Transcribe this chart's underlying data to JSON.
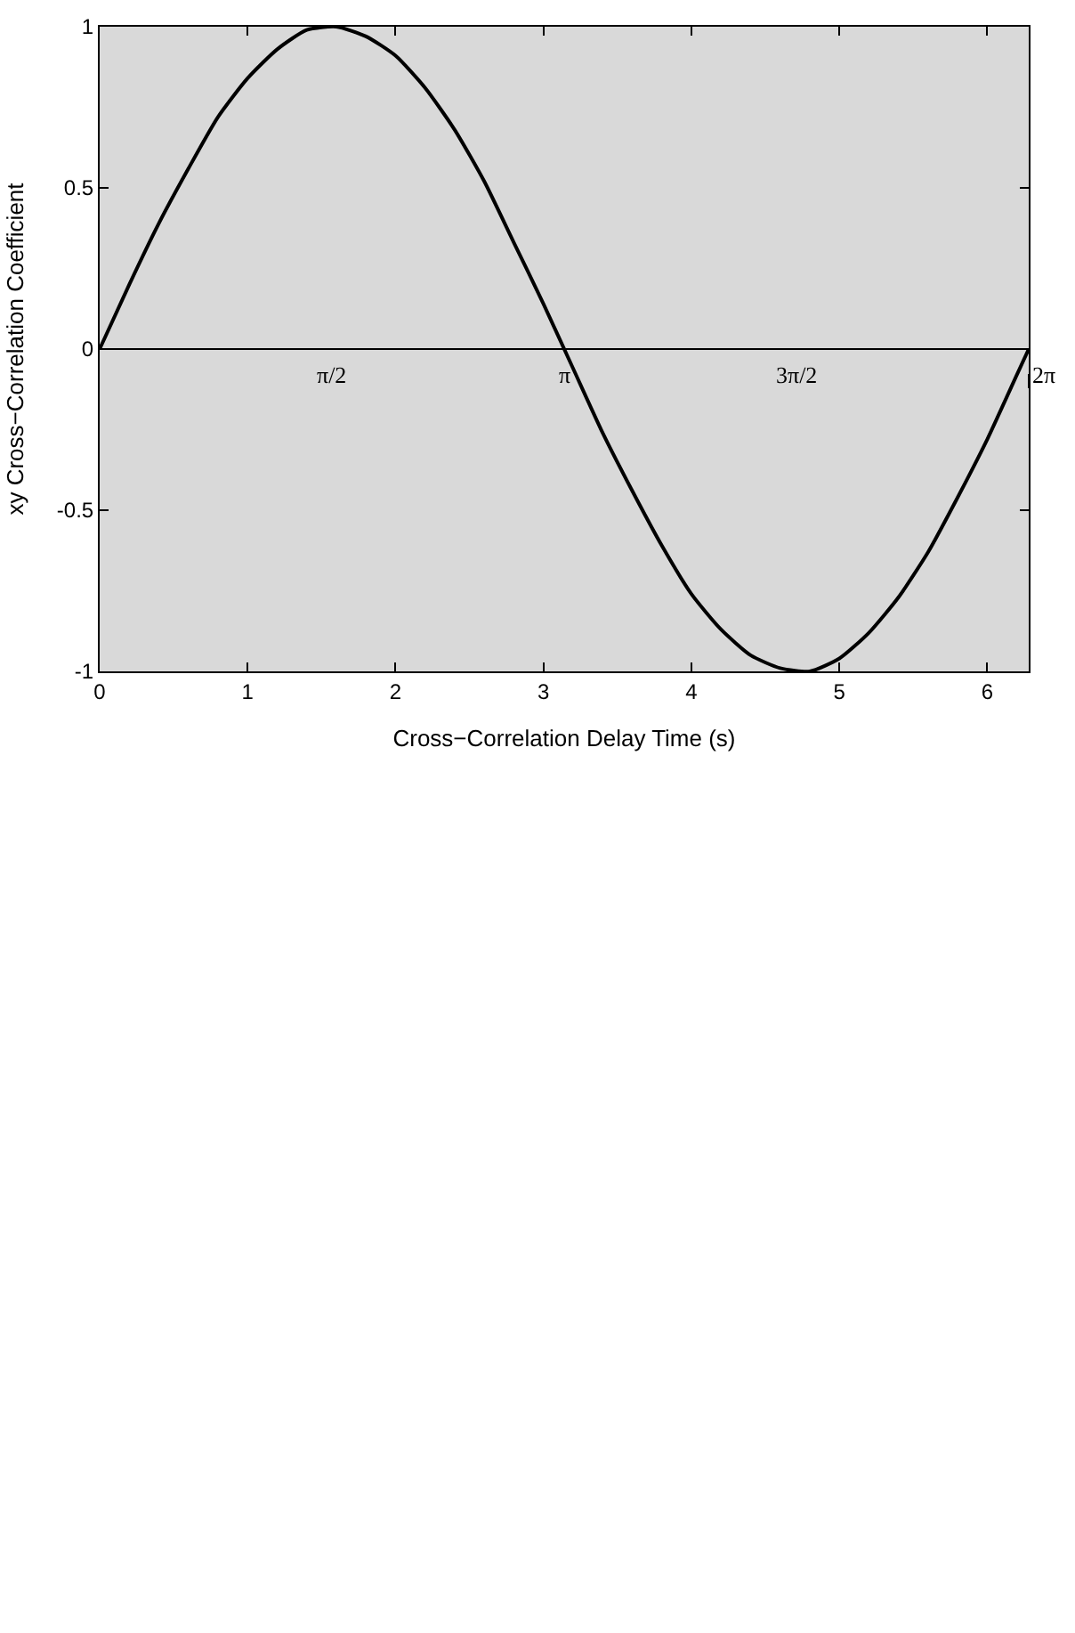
{
  "chart_data": {
    "type": "line",
    "xlabel": "Cross−Correlation Delay Time (s)",
    "ylabel": "xy Cross−Correlation Coefficient",
    "x": [
      0,
      0.2,
      0.4,
      0.6,
      0.8,
      1.0,
      1.2,
      1.4,
      1.6,
      1.8,
      2.0,
      2.2,
      2.4,
      2.6,
      2.8,
      3.0,
      3.2,
      3.4,
      3.6,
      3.8,
      4.0,
      4.2,
      4.4,
      4.6,
      4.8,
      5.0,
      5.2,
      5.4,
      5.6,
      5.8,
      6.0,
      6.2,
      6.28
    ],
    "series": [
      {
        "color": "#000000",
        "values": [
          0,
          0.2,
          0.39,
          0.56,
          0.72,
          0.84,
          0.93,
          0.99,
          1.0,
          0.97,
          0.91,
          0.81,
          0.68,
          0.52,
          0.33,
          0.14,
          -0.06,
          -0.26,
          -0.44,
          -0.61,
          -0.76,
          -0.87,
          -0.95,
          -0.99,
          -1.0,
          -0.96,
          -0.88,
          -0.77,
          -0.63,
          -0.46,
          -0.28,
          -0.08,
          0
        ]
      }
    ],
    "xlim": [
      0,
      6.28
    ],
    "ylim": [
      -1,
      1
    ],
    "xticks": [
      0,
      1,
      2,
      3,
      4,
      5,
      6
    ],
    "yticks": [
      -1,
      -0.5,
      0,
      0.5,
      1
    ],
    "ref_lines": [
      {
        "axis": "y",
        "value": 0,
        "color": "#000000"
      }
    ],
    "annotations": [
      {
        "text": "π/2",
        "x": 1.571,
        "y": 0
      },
      {
        "text": "π",
        "x": 3.142,
        "y": 0
      },
      {
        "text": "3π/2",
        "x": 4.712,
        "y": 0
      },
      {
        "text": "2π",
        "x": 6.28,
        "y": 0
      }
    ],
    "grid": false,
    "marker": "none",
    "line_style": "solid"
  }
}
